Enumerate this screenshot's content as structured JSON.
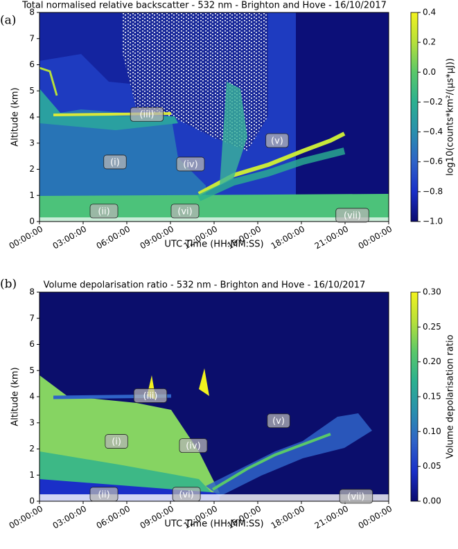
{
  "chart_data": [
    {
      "type": "heatmap",
      "panel_label": "(a)",
      "title": "Total normalised relative backscatter - 532 nm - Brighton and Hove - 16/10/2017",
      "xlabel": "UTC Time (HH:MM:SS)",
      "ylabel": "Altitude (km)",
      "xlim": [
        0,
        24
      ],
      "xticks": [
        {
          "value": 0,
          "label": "00:00:00"
        },
        {
          "value": 3,
          "label": "03:00:00"
        },
        {
          "value": 6,
          "label": "06:00:00"
        },
        {
          "value": 9,
          "label": "09:00:00"
        },
        {
          "value": 12,
          "label": "12:00:00"
        },
        {
          "value": 15,
          "label": "15:00:00"
        },
        {
          "value": 18,
          "label": "18:00:00"
        },
        {
          "value": 21,
          "label": "21:00:00"
        },
        {
          "value": 24,
          "label": "00:00:00"
        }
      ],
      "ylim": [
        0,
        8
      ],
      "yticks": [
        0,
        1,
        2,
        3,
        4,
        5,
        6,
        7,
        8
      ],
      "colorbar_label": "log10(counts*km²/(μs*μJ))",
      "clim": [
        -1.0,
        0.4
      ],
      "cticks": [
        {
          "value": -1.0,
          "label": "−1.0"
        },
        {
          "value": -0.8,
          "label": "−0.8"
        },
        {
          "value": -0.6,
          "label": "−0.6"
        },
        {
          "value": -0.4,
          "label": "−0.4"
        },
        {
          "value": -0.2,
          "label": "−0.2"
        },
        {
          "value": 0.0,
          "label": "0.0"
        },
        {
          "value": 0.2,
          "label": "0.2"
        },
        {
          "value": 0.4,
          "label": "0.4"
        }
      ],
      "colormap": [
        "#0a0a6e",
        "#1a2fc8",
        "#2f63c8",
        "#2a8fae",
        "#2bb090",
        "#59c86a",
        "#b6e03a",
        "#f2f21e"
      ],
      "annotations": [
        {
          "text": "(iii)",
          "x": 7.38,
          "y": 4.1
        },
        {
          "text": "(i)",
          "x": 5.19,
          "y": 2.28
        },
        {
          "text": "(iv)",
          "x": 10.38,
          "y": 2.2
        },
        {
          "text": "(v)",
          "x": 16.33,
          "y": 3.1
        },
        {
          "text": "(ii)",
          "x": 4.43,
          "y": 0.4
        },
        {
          "text": "(vi)",
          "x": 10.0,
          "y": 0.4
        },
        {
          "text": "(vii)",
          "x": 21.5,
          "y": 0.24
        }
      ]
    },
    {
      "type": "heatmap",
      "panel_label": "(b)",
      "title": "Volume depolarisation ratio - 532 nm - Brighton and Hove - 16/10/2017",
      "xlabel": "UTC Time (HH:MM:SS)",
      "ylabel": "Altitude (km)",
      "xlim": [
        0,
        24
      ],
      "xticks": [
        {
          "value": 0,
          "label": "00:00:00"
        },
        {
          "value": 3,
          "label": "03:00:00"
        },
        {
          "value": 6,
          "label": "06:00:00"
        },
        {
          "value": 9,
          "label": "09:00:00"
        },
        {
          "value": 12,
          "label": "12:00:00"
        },
        {
          "value": 15,
          "label": "15:00:00"
        },
        {
          "value": 18,
          "label": "18:00:00"
        },
        {
          "value": 21,
          "label": "21:00:00"
        },
        {
          "value": 24,
          "label": "00:00:00"
        }
      ],
      "ylim": [
        0,
        8
      ],
      "yticks": [
        0,
        1,
        2,
        3,
        4,
        5,
        6,
        7,
        8
      ],
      "colorbar_label": "Volume depolarisation ratio",
      "clim": [
        0.0,
        0.3
      ],
      "cticks": [
        {
          "value": 0.0,
          "label": "0.00"
        },
        {
          "value": 0.05,
          "label": "0.05"
        },
        {
          "value": 0.1,
          "label": "0.10"
        },
        {
          "value": 0.15,
          "label": "0.15"
        },
        {
          "value": 0.2,
          "label": "0.20"
        },
        {
          "value": 0.25,
          "label": "0.25"
        },
        {
          "value": 0.3,
          "label": "0.30"
        }
      ],
      "colormap": [
        "#0a0a6e",
        "#1a2fc8",
        "#2f63c8",
        "#2a8fae",
        "#2bb090",
        "#59c86a",
        "#b6e03a",
        "#f2f21e"
      ],
      "annotations": [
        {
          "text": "(iii)",
          "x": 7.62,
          "y": 4.04
        },
        {
          "text": "(i)",
          "x": 5.29,
          "y": 2.29
        },
        {
          "text": "(iv)",
          "x": 10.57,
          "y": 2.13
        },
        {
          "text": "(v)",
          "x": 16.43,
          "y": 3.08
        },
        {
          "text": "(ii)",
          "x": 4.43,
          "y": 0.27
        },
        {
          "text": "(vi)",
          "x": 10.1,
          "y": 0.27
        },
        {
          "text": "(vii)",
          "x": 21.76,
          "y": 0.19
        }
      ]
    }
  ]
}
